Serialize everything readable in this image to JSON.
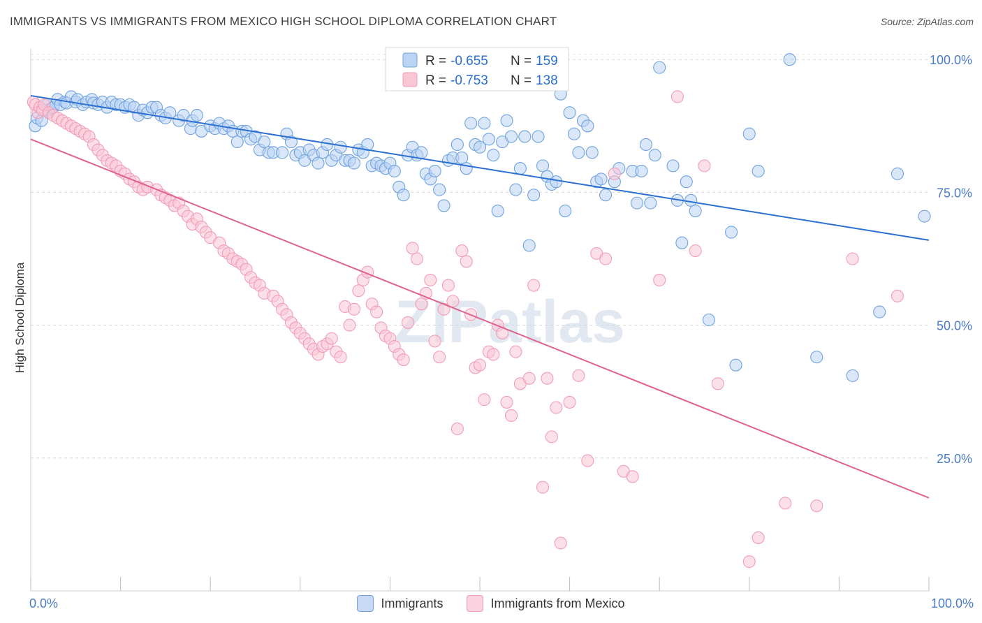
{
  "header": {
    "title": "IMMIGRANTS VS IMMIGRANTS FROM MEXICO HIGH SCHOOL DIPLOMA CORRELATION CHART",
    "source": "Source: ZipAtlas.com"
  },
  "watermark": "ZIPatlas",
  "chart_data": {
    "type": "scatter",
    "xlabel": "",
    "ylabel": "High School Diploma",
    "xlim": [
      0,
      100
    ],
    "ylim": [
      0,
      102
    ],
    "x_tick_labels": [
      "0.0%",
      "100.0%"
    ],
    "y_ticks": [
      25,
      50,
      75,
      100
    ],
    "y_tick_labels": [
      "25.0%",
      "50.0%",
      "75.0%",
      "100.0%"
    ],
    "grid": true,
    "legend_position": "top-center",
    "series": [
      {
        "name": "Immigrants",
        "color": "#6fa3e0",
        "line_color": "#2a6fd1",
        "r_label": "R = ",
        "r_value": "-0.655",
        "n_label": "N = ",
        "n_value": "159",
        "trend": [
          [
            0,
            93.2
          ],
          [
            100,
            66.0
          ]
        ],
        "points": [
          [
            0.5,
            87.5
          ],
          [
            0.7,
            89.0
          ],
          [
            1.2,
            88.5
          ],
          [
            1.8,
            91.5
          ],
          [
            2.0,
            90.5
          ],
          [
            2.3,
            90.8
          ],
          [
            2.5,
            91.0
          ],
          [
            3.0,
            92.5
          ],
          [
            3.3,
            91.5
          ],
          [
            3.8,
            92.0
          ],
          [
            4.0,
            91.8
          ],
          [
            4.5,
            93.0
          ],
          [
            5.0,
            92.0
          ],
          [
            5.2,
            92.5
          ],
          [
            5.8,
            91.5
          ],
          [
            6.2,
            92.0
          ],
          [
            6.8,
            92.5
          ],
          [
            7.0,
            91.8
          ],
          [
            7.5,
            91.5
          ],
          [
            8.0,
            92.0
          ],
          [
            8.5,
            91.0
          ],
          [
            9.0,
            92.0
          ],
          [
            9.5,
            91.5
          ],
          [
            10.0,
            91.5
          ],
          [
            10.5,
            91.0
          ],
          [
            11.0,
            91.5
          ],
          [
            11.5,
            91.0
          ],
          [
            12.0,
            89.5
          ],
          [
            12.5,
            90.5
          ],
          [
            13.0,
            90.0
          ],
          [
            13.5,
            91.0
          ],
          [
            14.0,
            91.0
          ],
          [
            14.5,
            89.5
          ],
          [
            15.0,
            89.0
          ],
          [
            15.5,
            90.0
          ],
          [
            16.5,
            88.5
          ],
          [
            17.0,
            89.5
          ],
          [
            17.8,
            87.0
          ],
          [
            18.0,
            88.5
          ],
          [
            18.5,
            89.5
          ],
          [
            19.0,
            86.5
          ],
          [
            20.0,
            87.5
          ],
          [
            20.5,
            87.0
          ],
          [
            21.0,
            88.0
          ],
          [
            21.5,
            87.0
          ],
          [
            22.0,
            87.5
          ],
          [
            22.5,
            86.5
          ],
          [
            23.0,
            84.5
          ],
          [
            23.5,
            86.5
          ],
          [
            24.0,
            86.5
          ],
          [
            24.5,
            85.0
          ],
          [
            25.0,
            85.5
          ],
          [
            25.5,
            83.0
          ],
          [
            26.0,
            84.5
          ],
          [
            26.5,
            82.5
          ],
          [
            27.0,
            82.5
          ],
          [
            28.0,
            82.5
          ],
          [
            28.5,
            86.0
          ],
          [
            29.0,
            84.5
          ],
          [
            29.5,
            82.0
          ],
          [
            30.0,
            82.5
          ],
          [
            30.5,
            81.0
          ],
          [
            31.0,
            83.0
          ],
          [
            31.5,
            82.0
          ],
          [
            32.0,
            80.5
          ],
          [
            32.5,
            82.5
          ],
          [
            33.0,
            84.0
          ],
          [
            33.5,
            81.0
          ],
          [
            34.0,
            82.0
          ],
          [
            34.5,
            83.5
          ],
          [
            35.0,
            81.0
          ],
          [
            35.5,
            81.0
          ],
          [
            36.0,
            80.5
          ],
          [
            36.5,
            83.0
          ],
          [
            37.0,
            82.5
          ],
          [
            37.5,
            84.0
          ],
          [
            38.0,
            80.0
          ],
          [
            38.5,
            80.5
          ],
          [
            39.0,
            80.0
          ],
          [
            39.5,
            79.5
          ],
          [
            40.0,
            80.5
          ],
          [
            40.5,
            79.0
          ],
          [
            41.0,
            76.0
          ],
          [
            41.5,
            74.5
          ],
          [
            42.0,
            82.0
          ],
          [
            42.5,
            83.5
          ],
          [
            43.0,
            82.0
          ],
          [
            43.5,
            82.5
          ],
          [
            44.0,
            78.5
          ],
          [
            44.5,
            77.5
          ],
          [
            45.0,
            79.0
          ],
          [
            45.5,
            75.5
          ],
          [
            46.0,
            72.5
          ],
          [
            46.5,
            81.0
          ],
          [
            47.0,
            81.5
          ],
          [
            47.5,
            84.0
          ],
          [
            48.0,
            81.5
          ],
          [
            48.5,
            79.5
          ],
          [
            49.0,
            88.0
          ],
          [
            49.5,
            84.0
          ],
          [
            50.0,
            83.5
          ],
          [
            50.5,
            88.0
          ],
          [
            51.0,
            85.0
          ],
          [
            51.5,
            82.0
          ],
          [
            52.0,
            71.5
          ],
          [
            52.5,
            84.5
          ],
          [
            53.0,
            88.5
          ],
          [
            53.5,
            85.5
          ],
          [
            54.0,
            75.5
          ],
          [
            54.5,
            79.5
          ],
          [
            55.0,
            85.5
          ],
          [
            55.5,
            65.0
          ],
          [
            56.0,
            74.5
          ],
          [
            56.5,
            85.5
          ],
          [
            57.0,
            80.0
          ],
          [
            57.5,
            78.0
          ],
          [
            58.0,
            76.5
          ],
          [
            58.5,
            77.0
          ],
          [
            59.0,
            93.5
          ],
          [
            59.5,
            71.5
          ],
          [
            60.0,
            90.0
          ],
          [
            60.5,
            86.0
          ],
          [
            61.0,
            82.5
          ],
          [
            61.5,
            88.5
          ],
          [
            62.0,
            87.5
          ],
          [
            62.5,
            82.5
          ],
          [
            63.0,
            77.0
          ],
          [
            63.5,
            77.5
          ],
          [
            64.0,
            74.5
          ],
          [
            65.0,
            77.0
          ],
          [
            65.5,
            79.5
          ],
          [
            67.0,
            79.0
          ],
          [
            67.5,
            73.0
          ],
          [
            68.0,
            79.0
          ],
          [
            68.5,
            84.0
          ],
          [
            69.0,
            73.0
          ],
          [
            69.5,
            82.0
          ],
          [
            70.0,
            98.5
          ],
          [
            71.5,
            80.0
          ],
          [
            72.0,
            73.5
          ],
          [
            72.5,
            65.5
          ],
          [
            73.0,
            77.0
          ],
          [
            73.5,
            73.5
          ],
          [
            74.0,
            71.5
          ],
          [
            75.5,
            51.0
          ],
          [
            78.0,
            67.5
          ],
          [
            78.5,
            42.5
          ],
          [
            80.0,
            86.0
          ],
          [
            81.0,
            79.0
          ],
          [
            84.5,
            100.0
          ],
          [
            87.5,
            44.0
          ],
          [
            91.5,
            40.5
          ],
          [
            94.5,
            52.5
          ],
          [
            96.5,
            78.5
          ],
          [
            99.5,
            70.5
          ]
        ]
      },
      {
        "name": "Immigrants from Mexico",
        "color": "#f29cb8",
        "line_color": "#e0628e",
        "r_label": "R = ",
        "r_value": "-0.753",
        "n_label": "N = ",
        "n_value": "138",
        "trend": [
          [
            0,
            85.0
          ],
          [
            100,
            17.5
          ]
        ],
        "points": [
          [
            0.3,
            92.0
          ],
          [
            0.5,
            91.5
          ],
          [
            0.8,
            90.0
          ],
          [
            1.0,
            91.0
          ],
          [
            1.3,
            90.5
          ],
          [
            1.5,
            91.5
          ],
          [
            2.0,
            90.0
          ],
          [
            2.5,
            89.5
          ],
          [
            3.0,
            89.0
          ],
          [
            3.5,
            88.5
          ],
          [
            4.0,
            88.0
          ],
          [
            4.5,
            87.5
          ],
          [
            5.0,
            87.0
          ],
          [
            5.5,
            86.5
          ],
          [
            6.0,
            86.0
          ],
          [
            6.5,
            85.5
          ],
          [
            7.0,
            84.0
          ],
          [
            7.5,
            83.0
          ],
          [
            8.0,
            82.0
          ],
          [
            8.5,
            81.0
          ],
          [
            9.0,
            80.5
          ],
          [
            9.5,
            80.0
          ],
          [
            10.0,
            79.0
          ],
          [
            10.5,
            78.5
          ],
          [
            11.0,
            77.5
          ],
          [
            11.5,
            77.0
          ],
          [
            12.0,
            76.0
          ],
          [
            12.5,
            75.5
          ],
          [
            13.0,
            76.0
          ],
          [
            14.0,
            75.5
          ],
          [
            14.5,
            74.5
          ],
          [
            15.0,
            74.0
          ],
          [
            15.5,
            73.5
          ],
          [
            16.0,
            72.5
          ],
          [
            16.5,
            73.0
          ],
          [
            17.0,
            71.5
          ],
          [
            17.5,
            70.5
          ],
          [
            18.0,
            69.0
          ],
          [
            18.5,
            70.0
          ],
          [
            19.0,
            68.5
          ],
          [
            19.5,
            67.5
          ],
          [
            20.0,
            66.5
          ],
          [
            21.0,
            65.5
          ],
          [
            21.5,
            64.0
          ],
          [
            22.0,
            63.5
          ],
          [
            22.5,
            62.5
          ],
          [
            23.0,
            62.0
          ],
          [
            23.5,
            61.5
          ],
          [
            24.0,
            60.5
          ],
          [
            24.5,
            59.0
          ],
          [
            25.0,
            58.0
          ],
          [
            25.5,
            57.5
          ],
          [
            26.0,
            56.0
          ],
          [
            27.0,
            55.5
          ],
          [
            27.5,
            54.5
          ],
          [
            28.0,
            53.0
          ],
          [
            28.5,
            52.0
          ],
          [
            29.0,
            50.5
          ],
          [
            29.5,
            49.5
          ],
          [
            30.0,
            48.5
          ],
          [
            30.5,
            47.5
          ],
          [
            31.0,
            46.5
          ],
          [
            31.5,
            45.5
          ],
          [
            32.0,
            44.5
          ],
          [
            32.5,
            46.0
          ],
          [
            33.0,
            46.5
          ],
          [
            33.5,
            47.5
          ],
          [
            34.0,
            45.0
          ],
          [
            34.5,
            44.0
          ],
          [
            35.0,
            53.5
          ],
          [
            35.5,
            50.0
          ],
          [
            36.0,
            53.0
          ],
          [
            36.5,
            56.5
          ],
          [
            37.0,
            58.5
          ],
          [
            37.5,
            60.0
          ],
          [
            38.0,
            54.0
          ],
          [
            38.5,
            52.5
          ],
          [
            39.0,
            49.5
          ],
          [
            39.5,
            48.0
          ],
          [
            40.0,
            47.5
          ],
          [
            40.5,
            46.0
          ],
          [
            41.0,
            44.5
          ],
          [
            41.5,
            43.5
          ],
          [
            42.0,
            50.5
          ],
          [
            42.5,
            64.5
          ],
          [
            43.0,
            62.5
          ],
          [
            43.5,
            54.0
          ],
          [
            44.0,
            56.0
          ],
          [
            44.5,
            58.5
          ],
          [
            45.0,
            47.0
          ],
          [
            45.5,
            44.0
          ],
          [
            46.0,
            53.0
          ],
          [
            46.5,
            57.5
          ],
          [
            47.0,
            54.5
          ],
          [
            47.5,
            30.5
          ],
          [
            48.0,
            64.0
          ],
          [
            48.5,
            62.0
          ],
          [
            49.0,
            52.0
          ],
          [
            49.5,
            42.0
          ],
          [
            50.0,
            42.5
          ],
          [
            50.5,
            36.0
          ],
          [
            51.0,
            45.0
          ],
          [
            51.5,
            44.5
          ],
          [
            52.0,
            50.0
          ],
          [
            52.5,
            48.5
          ],
          [
            53.0,
            35.5
          ],
          [
            53.5,
            33.0
          ],
          [
            54.0,
            45.0
          ],
          [
            54.5,
            39.0
          ],
          [
            55.0,
            100.0
          ],
          [
            55.5,
            40.0
          ],
          [
            56.0,
            57.5
          ],
          [
            57.0,
            19.5
          ],
          [
            57.5,
            40.0
          ],
          [
            58.0,
            29.0
          ],
          [
            58.5,
            34.5
          ],
          [
            59.0,
            9.0
          ],
          [
            60.0,
            35.5
          ],
          [
            61.0,
            40.5
          ],
          [
            62.0,
            24.5
          ],
          [
            63.0,
            63.5
          ],
          [
            64.0,
            62.5
          ],
          [
            65.0,
            78.5
          ],
          [
            66.0,
            22.5
          ],
          [
            67.0,
            21.5
          ],
          [
            70.0,
            58.5
          ],
          [
            72.0,
            93.0
          ],
          [
            74.0,
            64.0
          ],
          [
            75.0,
            80.0
          ],
          [
            76.5,
            39.0
          ],
          [
            80.0,
            5.5
          ],
          [
            81.0,
            10.0
          ],
          [
            84.0,
            16.5
          ],
          [
            87.5,
            16.0
          ],
          [
            91.5,
            62.5
          ],
          [
            96.5,
            55.5
          ]
        ]
      }
    ]
  },
  "legend_bottom": {
    "items": [
      {
        "label": "Immigrants"
      },
      {
        "label": "Immigrants from Mexico"
      }
    ]
  }
}
